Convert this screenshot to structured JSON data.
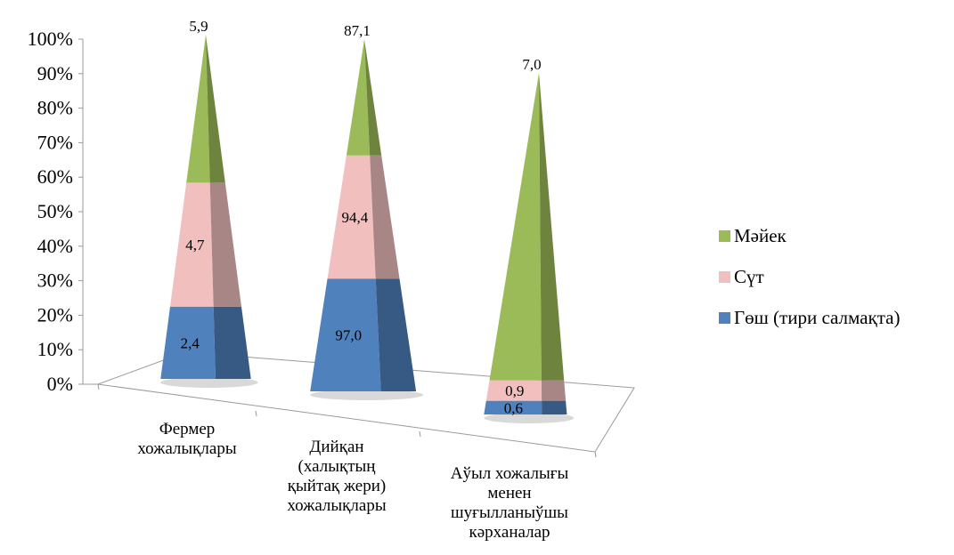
{
  "chart_data": {
    "type": "bar",
    "style": "3d-pyramid-100-percent-stacked",
    "ylim": [
      0,
      100
    ],
    "y_ticks": [
      "0%",
      "10%",
      "20%",
      "30%",
      "40%",
      "50%",
      "60%",
      "70%",
      "80%",
      "90%",
      "100%"
    ],
    "categories": [
      [
        "Фермер",
        "хожалықлары"
      ],
      [
        "Дийқан",
        "(халықтың",
        "қыйтақ жери)",
        "хожалықлары"
      ],
      [
        "Аўыл хожалығы",
        "менен",
        "шуғылланыўшы",
        "кәрханалар"
      ]
    ],
    "series": [
      {
        "name": "Гөш (тири салмақта)",
        "color": "#4f81bd",
        "values": [
          2.4,
          97.0,
          0.6
        ],
        "labels": [
          "2,4",
          "97,0",
          "0,6"
        ],
        "share_percent": [
          21,
          32,
          4
        ]
      },
      {
        "name": "Сүт",
        "color": "#f2bfbf",
        "values": [
          4.7,
          94.4,
          0.9
        ],
        "labels": [
          "4,7",
          "94,4",
          "0,9"
        ],
        "share_percent": [
          36,
          35,
          6
        ]
      },
      {
        "name": "Мәйек",
        "color": "#9bbb59",
        "values": [
          5.9,
          87.1,
          7.0
        ],
        "labels": [
          "5,9",
          "87,1",
          "7,0"
        ],
        "share_percent": [
          43,
          33,
          90
        ]
      }
    ],
    "legend_position": "right",
    "legend_order": [
      2,
      1,
      0
    ],
    "grid": false
  }
}
